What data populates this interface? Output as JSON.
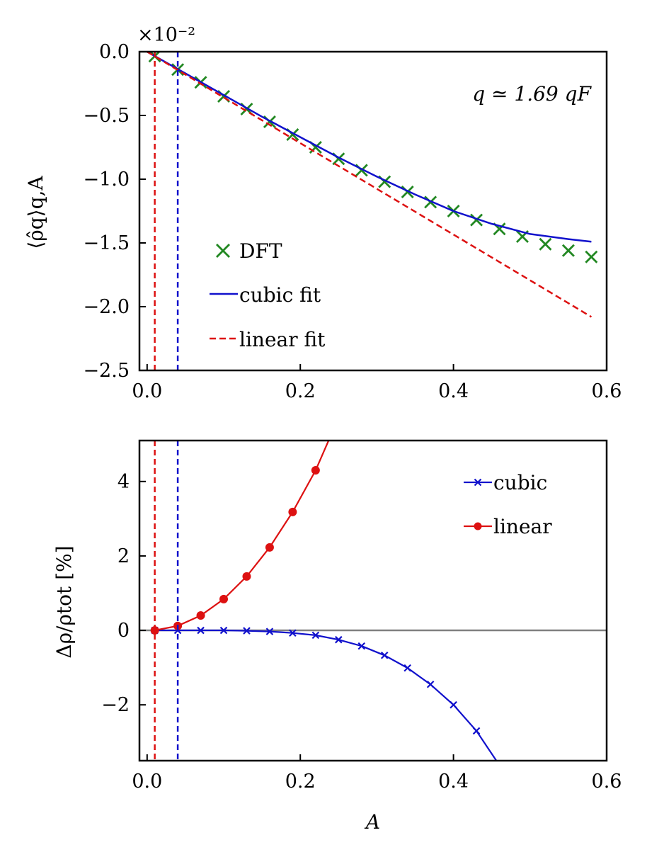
{
  "chart_data": [
    {
      "type": "line",
      "panel": "top",
      "xlabel": "",
      "ylabel": "⟨ρ̂q⟩q,A",
      "xlim": [
        -0.01,
        0.6
      ],
      "ylim": [
        -2.5,
        0.0
      ],
      "y_scale_label": "×10⁻²",
      "x_ticks": [
        0.0,
        0.2,
        0.4,
        0.6
      ],
      "x_tick_labels": [
        "0.0",
        "0.2",
        "0.4",
        "0.6"
      ],
      "y_ticks": [
        0.0,
        -0.5,
        -1.0,
        -1.5,
        -2.0,
        -2.5
      ],
      "y_tick_labels": [
        "0.0",
        "−0.5",
        "−1.0",
        "−1.5",
        "−2.0",
        "−2.5"
      ],
      "annotation": "q ≃ 1.69 qF",
      "legend_position": "lower-left",
      "vlines": [
        {
          "x": 0.01,
          "color": "#dd1111",
          "style": "dashed"
        },
        {
          "x": 0.04,
          "color": "#1111cc",
          "style": "dashed"
        }
      ],
      "series": [
        {
          "name": "DFT",
          "marker": "x",
          "color": "#228822",
          "x": [
            0.01,
            0.04,
            0.07,
            0.1,
            0.13,
            0.16,
            0.19,
            0.22,
            0.25,
            0.28,
            0.31,
            0.34,
            0.37,
            0.4,
            0.43,
            0.46,
            0.49,
            0.52,
            0.55,
            0.58
          ],
          "y": [
            -0.035,
            -0.14,
            -0.24,
            -0.35,
            -0.45,
            -0.55,
            -0.65,
            -0.75,
            -0.84,
            -0.93,
            -1.02,
            -1.1,
            -1.18,
            -1.25,
            -1.32,
            -1.39,
            -1.45,
            -1.51,
            -1.56,
            -1.61
          ]
        },
        {
          "name": "cubic fit",
          "line": "solid",
          "color": "#1111cc",
          "x": [
            0.0,
            0.05,
            0.1,
            0.15,
            0.2,
            0.25,
            0.3,
            0.35,
            0.4,
            0.45,
            0.5,
            0.55,
            0.58
          ],
          "y": [
            0.0,
            -0.17,
            -0.34,
            -0.51,
            -0.67,
            -0.83,
            -0.98,
            -1.12,
            -1.25,
            -1.35,
            -1.43,
            -1.47,
            -1.49
          ]
        },
        {
          "name": "linear fit",
          "line": "dashed",
          "color": "#dd1111",
          "x": [
            0.0,
            0.58
          ],
          "y": [
            0.0,
            -2.08
          ]
        }
      ]
    },
    {
      "type": "line",
      "panel": "bottom",
      "xlabel": "A",
      "ylabel": "Δρ/ρtot [%]",
      "xlim": [
        -0.01,
        0.6
      ],
      "ylim": [
        -3.5,
        5.1
      ],
      "x_ticks": [
        0.0,
        0.2,
        0.4,
        0.6
      ],
      "x_tick_labels": [
        "0.0",
        "0.2",
        "0.4",
        "0.6"
      ],
      "y_ticks": [
        4,
        2,
        0,
        -2
      ],
      "y_tick_labels": [
        "4",
        "2",
        "0",
        "−2"
      ],
      "legend_position": "top-right",
      "hline": {
        "y": 0,
        "color": "#808080"
      },
      "vlines": [
        {
          "x": 0.01,
          "color": "#dd1111",
          "style": "dashed"
        },
        {
          "x": 0.04,
          "color": "#1111cc",
          "style": "dashed"
        }
      ],
      "series": [
        {
          "name": "cubic",
          "marker": "x",
          "color": "#1111cc",
          "x": [
            0.01,
            0.04,
            0.07,
            0.1,
            0.13,
            0.16,
            0.19,
            0.22,
            0.25,
            0.28,
            0.31,
            0.34,
            0.37,
            0.4,
            0.43
          ],
          "y": [
            0.0,
            0.0,
            0.0,
            0.0,
            -0.01,
            -0.03,
            -0.07,
            -0.13,
            -0.25,
            -0.42,
            -0.67,
            -1.01,
            -1.45,
            -2.0,
            -2.7
          ],
          "curve_end": {
            "x": 0.456,
            "y": -3.5
          }
        },
        {
          "name": "linear",
          "marker": "o",
          "color": "#dd1111",
          "x": [
            0.01,
            0.04,
            0.07,
            0.1,
            0.13,
            0.16,
            0.19,
            0.22
          ],
          "y": [
            0.0,
            0.12,
            0.4,
            0.84,
            1.45,
            2.23,
            3.18,
            4.3
          ],
          "curve_end": {
            "x": 0.237,
            "y": 5.1
          }
        }
      ]
    }
  ]
}
